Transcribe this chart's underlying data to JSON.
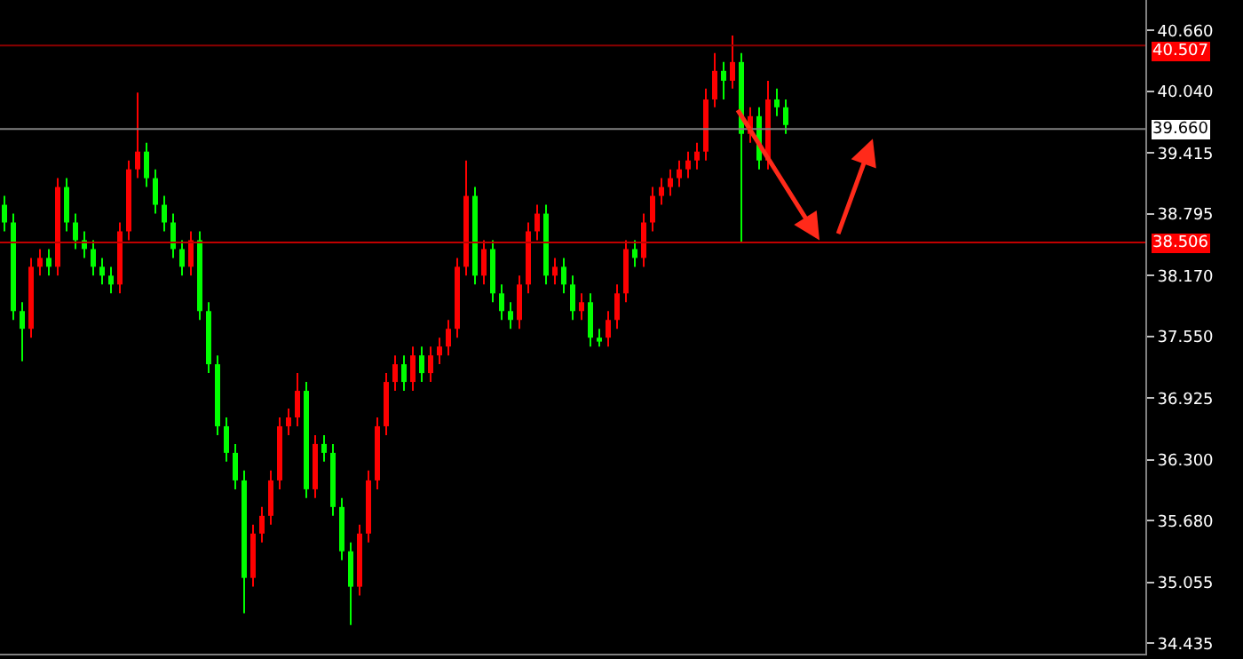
{
  "chart_data": {
    "type": "candlestick",
    "relative": false,
    "categories": [
      null,
      null,
      null,
      null,
      null,
      null,
      null,
      null,
      null,
      null,
      null,
      null,
      null,
      null,
      null,
      null,
      null,
      null,
      null,
      null,
      null,
      null,
      null,
      null,
      null,
      null,
      null,
      null,
      null,
      null,
      null,
      null,
      null,
      null,
      null,
      null,
      null,
      null,
      null,
      null,
      null,
      null,
      null,
      null,
      null,
      null,
      null,
      null,
      null,
      null,
      null,
      null,
      null,
      null,
      null,
      null,
      null,
      null,
      null,
      null,
      null,
      null,
      null,
      null,
      null,
      null,
      null,
      null,
      null,
      null,
      null,
      null,
      null,
      null,
      null,
      null,
      null,
      null,
      null,
      null,
      null,
      null,
      null,
      null,
      null,
      null,
      null,
      null,
      null,
      null,
      null,
      null,
      null,
      null,
      null,
      null,
      null,
      null,
      null,
      null,
      null,
      null,
      null,
      null,
      null,
      null,
      null,
      null,
      null,
      null,
      null,
      null,
      null,
      null,
      null,
      null,
      null,
      null,
      null,
      null,
      null,
      null,
      null,
      null,
      null,
      null,
      null,
      null,
      null
    ],
    "ohlc": [
      [
        38.89,
        38.98,
        38.62,
        38.71
      ],
      [
        38.71,
        38.8,
        37.72,
        37.81
      ],
      [
        37.81,
        37.9,
        37.3,
        37.63
      ],
      [
        37.63,
        38.35,
        37.54,
        38.26
      ],
      [
        38.26,
        38.44,
        38.17,
        38.35
      ],
      [
        38.35,
        38.44,
        38.17,
        38.26
      ],
      [
        38.26,
        39.16,
        38.17,
        39.07
      ],
      [
        39.07,
        39.16,
        38.62,
        38.71
      ],
      [
        38.71,
        38.8,
        38.44,
        38.53
      ],
      [
        38.53,
        38.62,
        38.35,
        38.44
      ],
      [
        38.44,
        38.53,
        38.17,
        38.26
      ],
      [
        38.26,
        38.35,
        38.08,
        38.17
      ],
      [
        38.17,
        38.26,
        37.99,
        38.08
      ],
      [
        38.08,
        38.71,
        37.99,
        38.62
      ],
      [
        38.62,
        39.34,
        38.53,
        39.25
      ],
      [
        39.25,
        40.03,
        39.16,
        39.43
      ],
      [
        39.43,
        39.52,
        39.07,
        39.16
      ],
      [
        39.16,
        39.25,
        38.8,
        38.89
      ],
      [
        38.89,
        38.98,
        38.62,
        38.71
      ],
      [
        38.71,
        38.8,
        38.35,
        38.44
      ],
      [
        38.44,
        38.53,
        38.17,
        38.26
      ],
      [
        38.26,
        38.62,
        38.17,
        38.53
      ],
      [
        38.53,
        38.62,
        37.72,
        37.81
      ],
      [
        37.81,
        37.9,
        37.18,
        37.27
      ],
      [
        37.27,
        37.36,
        36.55,
        36.64
      ],
      [
        36.64,
        36.73,
        36.28,
        36.37
      ],
      [
        36.37,
        36.46,
        36.0,
        36.09
      ],
      [
        36.09,
        36.19,
        34.74,
        35.1
      ],
      [
        35.1,
        35.64,
        35.01,
        35.55
      ],
      [
        35.55,
        35.82,
        35.46,
        35.73
      ],
      [
        35.73,
        36.19,
        35.64,
        36.09
      ],
      [
        36.09,
        36.73,
        36.0,
        36.64
      ],
      [
        36.64,
        36.82,
        36.55,
        36.73
      ],
      [
        36.73,
        37.18,
        36.64,
        37.0
      ],
      [
        37.0,
        37.09,
        35.91,
        36.0
      ],
      [
        36.0,
        36.55,
        35.91,
        36.46
      ],
      [
        36.46,
        36.55,
        36.28,
        36.37
      ],
      [
        36.37,
        36.46,
        35.73,
        35.82
      ],
      [
        35.82,
        35.91,
        35.28,
        35.37
      ],
      [
        35.37,
        35.46,
        34.62,
        35.01
      ],
      [
        35.01,
        35.64,
        34.92,
        35.55
      ],
      [
        35.55,
        36.19,
        35.46,
        36.09
      ],
      [
        36.09,
        36.73,
        36.0,
        36.64
      ],
      [
        36.64,
        37.18,
        36.55,
        37.09
      ],
      [
        37.09,
        37.36,
        37.0,
        37.27
      ],
      [
        37.27,
        37.36,
        37.0,
        37.09
      ],
      [
        37.09,
        37.45,
        37.0,
        37.36
      ],
      [
        37.36,
        37.45,
        37.09,
        37.18
      ],
      [
        37.18,
        37.45,
        37.09,
        37.36
      ],
      [
        37.36,
        37.54,
        37.27,
        37.45
      ],
      [
        37.45,
        37.72,
        37.36,
        37.63
      ],
      [
        37.63,
        38.35,
        37.54,
        38.26
      ],
      [
        38.26,
        39.34,
        38.17,
        38.98
      ],
      [
        38.98,
        39.07,
        38.08,
        38.17
      ],
      [
        38.17,
        38.53,
        38.08,
        38.44
      ],
      [
        38.44,
        38.53,
        37.9,
        37.99
      ],
      [
        37.99,
        38.08,
        37.72,
        37.81
      ],
      [
        37.81,
        37.9,
        37.63,
        37.72
      ],
      [
        37.72,
        38.17,
        37.63,
        38.08
      ],
      [
        38.08,
        38.71,
        37.99,
        38.62
      ],
      [
        38.62,
        38.89,
        38.53,
        38.8
      ],
      [
        38.8,
        38.89,
        38.08,
        38.17
      ],
      [
        38.17,
        38.35,
        38.08,
        38.26
      ],
      [
        38.26,
        38.35,
        37.99,
        38.08
      ],
      [
        38.08,
        38.17,
        37.72,
        37.81
      ],
      [
        37.81,
        37.99,
        37.72,
        37.9
      ],
      [
        37.9,
        37.99,
        37.45,
        37.54
      ],
      [
        37.54,
        37.63,
        37.45,
        37.5
      ],
      [
        37.54,
        37.81,
        37.45,
        37.72
      ],
      [
        37.72,
        38.08,
        37.63,
        37.99
      ],
      [
        37.99,
        38.53,
        37.9,
        38.44
      ],
      [
        38.44,
        38.53,
        38.26,
        38.35
      ],
      [
        38.35,
        38.8,
        38.26,
        38.71
      ],
      [
        38.71,
        39.07,
        38.62,
        38.98
      ],
      [
        38.98,
        39.16,
        38.89,
        39.07
      ],
      [
        39.07,
        39.25,
        38.98,
        39.16
      ],
      [
        39.16,
        39.34,
        39.07,
        39.25
      ],
      [
        39.25,
        39.43,
        39.16,
        39.34
      ],
      [
        39.34,
        39.52,
        39.25,
        39.43
      ],
      [
        39.43,
        40.07,
        39.34,
        39.96
      ],
      [
        39.96,
        40.43,
        39.88,
        40.25
      ],
      [
        40.25,
        40.34,
        39.96,
        40.15
      ],
      [
        40.15,
        40.61,
        40.07,
        40.34
      ],
      [
        40.34,
        40.43,
        38.51,
        39.61
      ],
      [
        39.61,
        39.88,
        39.52,
        39.79
      ],
      [
        39.79,
        39.88,
        39.25,
        39.34
      ],
      [
        39.34,
        40.15,
        39.25,
        39.96
      ],
      [
        39.96,
        40.07,
        39.79,
        39.88
      ],
      [
        39.88,
        39.96,
        39.61,
        39.7
      ],
      null,
      null,
      null,
      null,
      null,
      null,
      null,
      null,
      null,
      null,
      null,
      null,
      null,
      null,
      null,
      null,
      null,
      null,
      null,
      null,
      null,
      null,
      null,
      null,
      null,
      null,
      null,
      null,
      null,
      null,
      null,
      null,
      null,
      null,
      null,
      null,
      null,
      null,
      null,
      null
    ],
    "colors": [
      "#00ff00",
      "#00ff00",
      "#00ff00",
      "#ff0000",
      "#ff0000",
      "#00ff00",
      "#ff0000",
      "#00ff00",
      "#00ff00",
      "#00ff00",
      "#00ff00",
      "#00ff00",
      "#00ff00",
      "#ff0000",
      "#ff0000",
      "#ff0000",
      "#00ff00",
      "#00ff00",
      "#00ff00",
      "#00ff00",
      "#00ff00",
      "#ff0000",
      "#00ff00",
      "#00ff00",
      "#00ff00",
      "#00ff00",
      "#00ff00",
      "#00ff00",
      "#ff0000",
      "#ff0000",
      "#ff0000",
      "#ff0000",
      "#ff0000",
      "#ff0000",
      "#00ff00",
      "#ff0000",
      "#00ff00",
      "#00ff00",
      "#00ff00",
      "#00ff00",
      "#ff0000",
      "#ff0000",
      "#ff0000",
      "#ff0000",
      "#ff0000",
      "#00ff00",
      "#ff0000",
      "#00ff00",
      "#ff0000",
      "#ff0000",
      "#ff0000",
      "#ff0000",
      "#ff0000",
      "#00ff00",
      "#ff0000",
      "#00ff00",
      "#00ff00",
      "#00ff00",
      "#ff0000",
      "#ff0000",
      "#ff0000",
      "#00ff00",
      "#ff0000",
      "#00ff00",
      "#00ff00",
      "#ff0000",
      "#00ff00",
      "#00ff00",
      "#ff0000",
      "#ff0000",
      "#ff0000",
      "#00ff00",
      "#ff0000",
      "#ff0000",
      "#ff0000",
      "#ff0000",
      "#ff0000",
      "#ff0000",
      "#ff0000",
      "#ff0000",
      "#ff0000",
      "#00ff00",
      "#ff0000",
      "#00ff00",
      "#ff0000",
      "#00ff00",
      "#ff0000",
      "#00ff00",
      "#00ff00",
      null,
      null,
      null,
      null,
      null,
      null,
      null,
      null,
      null,
      null,
      null,
      null,
      null,
      null,
      null,
      null,
      null,
      null,
      null,
      null,
      null,
      null,
      null,
      null,
      null,
      null,
      null,
      null,
      null,
      null,
      null,
      null,
      null,
      null,
      null,
      null,
      null,
      null,
      null,
      null
    ],
    "ylim": [
      34.33,
      40.97
    ],
    "yticks": [
      {
        "value": 40.66,
        "label": "40.660"
      },
      {
        "value": 40.04,
        "label": "40.040"
      },
      {
        "value": 39.415,
        "label": "39.415"
      },
      {
        "value": 38.795,
        "label": "38.795"
      },
      {
        "value": 38.17,
        "label": "38.170"
      },
      {
        "value": 37.55,
        "label": "37.550"
      },
      {
        "value": 36.925,
        "label": "36.925"
      },
      {
        "value": 36.3,
        "label": "36.300"
      },
      {
        "value": 35.68,
        "label": "35.680"
      },
      {
        "value": 35.055,
        "label": "35.055"
      },
      {
        "value": 34.435,
        "label": "34.435"
      }
    ],
    "ref_lines": [
      {
        "axis": "y",
        "value": 40.507,
        "label": "40.507",
        "color": "#8b0000"
      },
      {
        "axis": "y",
        "value": 39.66,
        "label": "39.660",
        "color": "#808080"
      },
      {
        "axis": "y",
        "value": 38.506,
        "label": "38.506",
        "color": "#c00000"
      }
    ],
    "tick_labels": "y",
    "grid": false
  }
}
